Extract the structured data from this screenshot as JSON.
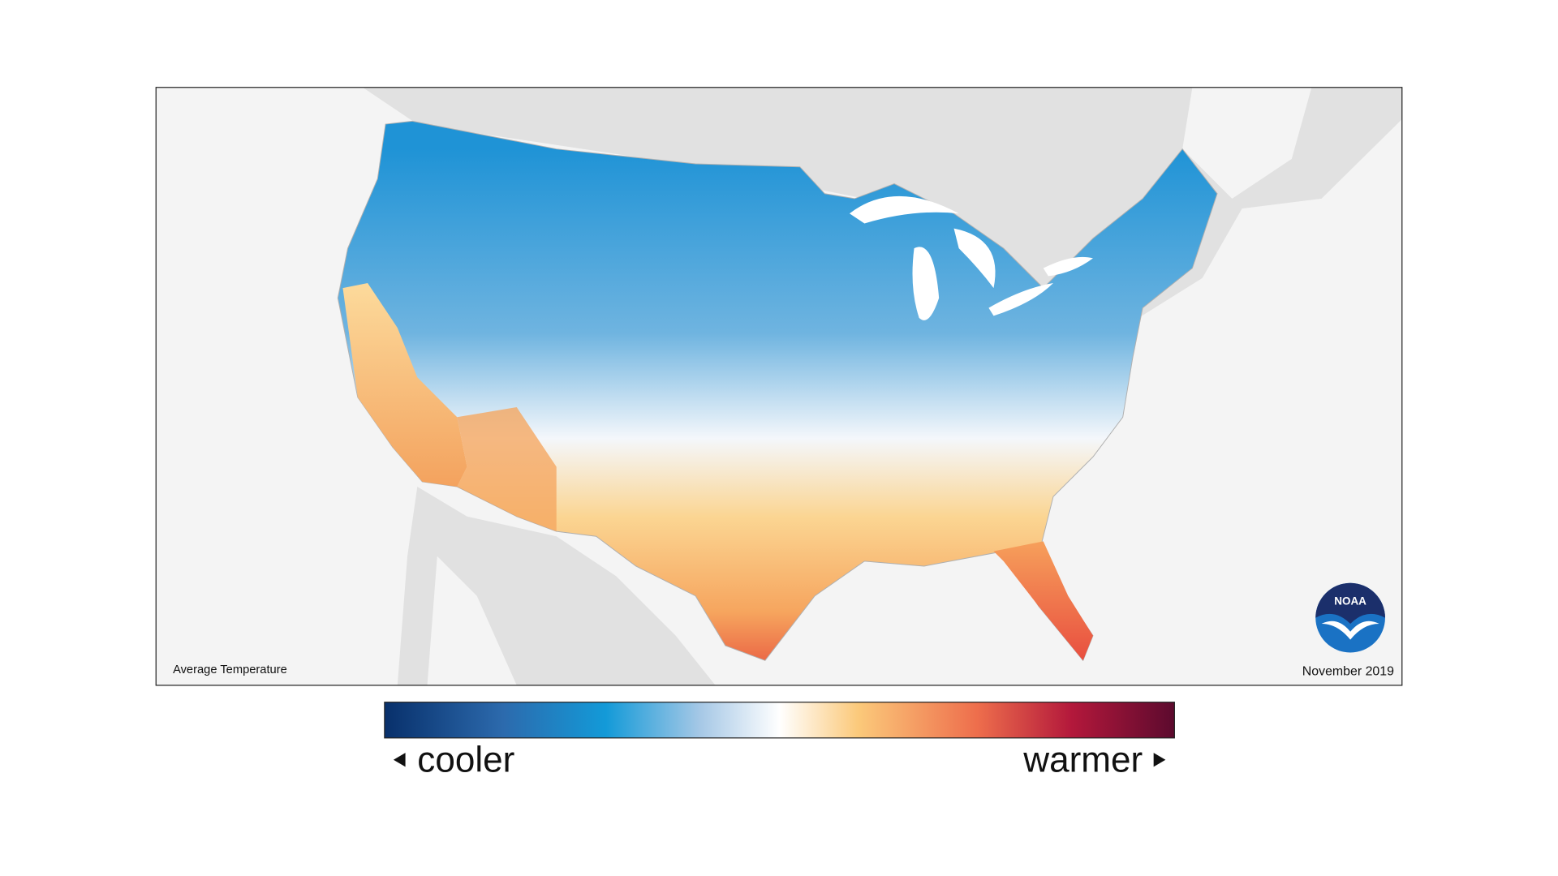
{
  "map": {
    "title": "Average Temperature",
    "date": "November 2019",
    "logo": "NOAA"
  },
  "legend": {
    "low": "cooler",
    "high": "warmer"
  }
}
